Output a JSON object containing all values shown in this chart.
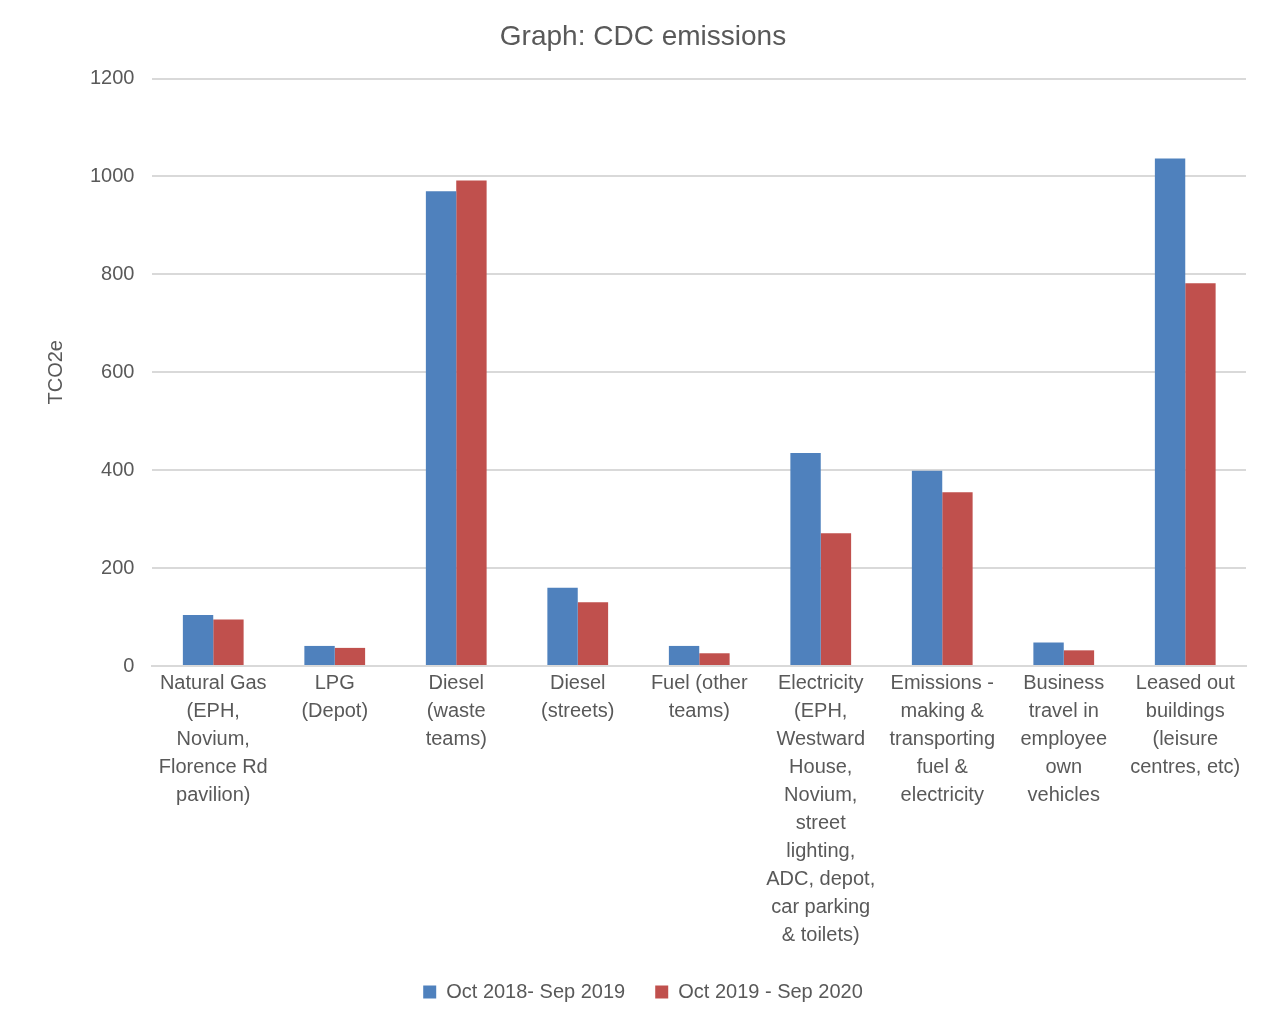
{
  "chart_data": {
    "type": "bar",
    "title": "Graph: CDC emissions",
    "ylabel": "TCO2e",
    "categories": [
      "Natural Gas (EPH, Novium, Florence Rd pavilion)",
      "LPG (Depot)",
      "Diesel (waste teams)",
      "Diesel (streets)",
      "Fuel (other teams)",
      "Electricity (EPH, Westward House, Novium, street lighting, ADC, depot, car parking & toilets)",
      "Emissions - making & transporting fuel & electricity",
      "Business travel in employee own vehicles",
      "Leased out buildings (leisure centres, etc)"
    ],
    "series": [
      {
        "name": "Oct 2018- Sep 2019",
        "color": "#4f81bd",
        "values": [
          104,
          41,
          970,
          160,
          41,
          435,
          399,
          48,
          1037
        ]
      },
      {
        "name": "Oct 2019 - Sep 2020",
        "color": "#c0504d",
        "values": [
          95,
          37,
          992,
          130,
          26,
          271,
          355,
          32,
          782
        ]
      }
    ],
    "ylim": [
      0,
      1200
    ],
    "yticks": [
      0,
      200,
      400,
      600,
      800,
      1000,
      1200
    ],
    "grid": "y",
    "legend": "bottom"
  }
}
